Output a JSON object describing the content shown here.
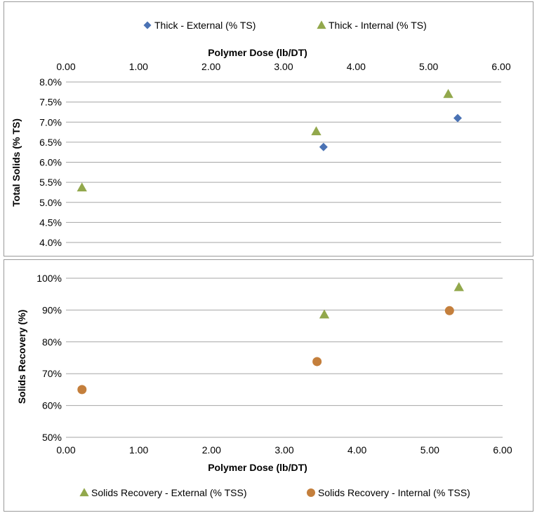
{
  "colors": {
    "diamond": "#4a72b4",
    "triangle": "#92a84c",
    "circle": "#c47f3c",
    "grid": "#a6a6a6"
  },
  "chart_data": [
    {
      "type": "scatter",
      "name": "total-solids",
      "title": "",
      "xlabel": "Polymer Dose (lb/DT)",
      "ylabel": "Total Solids (% TS)",
      "xlim": [
        0,
        6
      ],
      "ylim": [
        4.0,
        8.0
      ],
      "x_ticks": [
        "0.00",
        "1.00",
        "2.00",
        "3.00",
        "4.00",
        "5.00",
        "6.00"
      ],
      "y_ticks": [
        "8.0%",
        "7.5%",
        "7.0%",
        "6.5%",
        "6.0%",
        "5.5%",
        "5.0%",
        "4.5%",
        "4.0%"
      ],
      "x_axis_position": "top",
      "legend_position": "top",
      "series": [
        {
          "name": "Thick - External (% TS)",
          "marker": "diamond",
          "points": [
            {
              "x": 3.55,
              "y": 6.38
            },
            {
              "x": 5.4,
              "y": 7.1
            }
          ]
        },
        {
          "name": "Thick - Internal (% TS)",
          "marker": "triangle",
          "points": [
            {
              "x": 0.22,
              "y": 5.37
            },
            {
              "x": 3.45,
              "y": 6.77
            },
            {
              "x": 5.27,
              "y": 7.7
            }
          ]
        }
      ]
    },
    {
      "type": "scatter",
      "name": "solids-recovery",
      "title": "",
      "xlabel": "Polymer Dose (lb/DT)",
      "ylabel": "Solids Recovery (%)",
      "xlim": [
        0,
        6
      ],
      "ylim": [
        50,
        100
      ],
      "x_ticks": [
        "0.00",
        "1.00",
        "2.00",
        "3.00",
        "4.00",
        "5.00",
        "6.00"
      ],
      "y_ticks": [
        "100%",
        "90%",
        "80%",
        "70%",
        "60%",
        "50%"
      ],
      "x_axis_position": "bottom",
      "legend_position": "bottom",
      "series": [
        {
          "name": "Solids Recovery - External (% TSS)",
          "marker": "triangle",
          "points": [
            {
              "x": 3.55,
              "y": 88.6
            },
            {
              "x": 5.4,
              "y": 97.2
            }
          ]
        },
        {
          "name": "Solids Recovery - Internal (% TSS)",
          "marker": "circle",
          "points": [
            {
              "x": 0.22,
              "y": 65.0
            },
            {
              "x": 3.45,
              "y": 73.8
            },
            {
              "x": 5.27,
              "y": 89.8
            }
          ]
        }
      ]
    }
  ]
}
